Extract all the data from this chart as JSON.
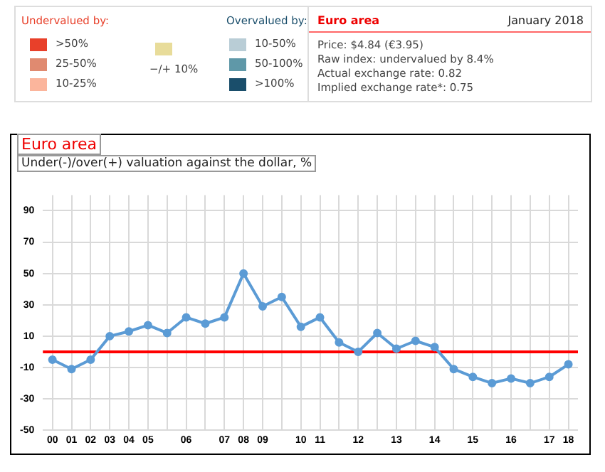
{
  "chart_data": [
    {
      "type": "other",
      "annotations": [
        "Undervalued by:",
        "Overvalued by:",
        "Euro area",
        "January 2018",
        "Price: $4.84 (€3.95)",
        "Raw index: undervalued by 8.4%",
        "Actual exchange rate: 0.82",
        "Implied exchange rate*: 0.75"
      ],
      "categories": [
        ">50%",
        "25-50%",
        "10-25%",
        "−/+ 10%",
        "10-50%",
        "50-100%",
        ">100%"
      ],
      "colors": [
        "#e8402a",
        "#e08a70",
        "#fbb59c",
        "#e8dc9a",
        "#b9cdd6",
        "#5f98a8",
        "#1a4e6b"
      ]
    },
    {
      "type": "line",
      "title": "Euro area",
      "subtitle": "Under(-)/over(+) valuation against the dollar, %",
      "categories": [
        "00",
        "01",
        "02",
        "03",
        "04",
        "05",
        null,
        "06",
        null,
        "07",
        "08",
        "09",
        null,
        "10",
        "11",
        null,
        "12",
        null,
        "13",
        null,
        "14",
        null,
        "15",
        null,
        "16",
        null,
        "17",
        "18"
      ],
      "series": [
        {
          "color": "#5b9bd5",
          "values": [
            -5,
            -11,
            -5,
            10,
            13,
            17,
            12,
            22,
            18,
            22,
            50,
            29,
            35,
            16,
            22,
            6,
            0,
            12,
            2,
            7,
            3,
            -11,
            -16,
            -20,
            -17,
            -20,
            -16,
            -8
          ]
        }
      ],
      "ylim": [
        -50,
        100
      ],
      "yticks": [
        -50,
        -30,
        -10,
        10,
        30,
        50,
        70,
        90
      ],
      "ref_lines": [
        {
          "axis": "y",
          "value": 0,
          "color": "#ff0000"
        }
      ],
      "grid": true,
      "marker": "circle",
      "line_style": "solid",
      "legend": false
    }
  ]
}
